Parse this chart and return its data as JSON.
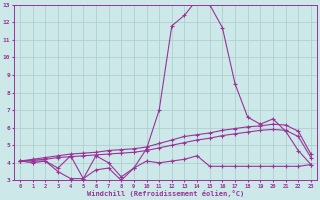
{
  "xlabel": "Windchill (Refroidissement éolien,°C)",
  "bg_color": "#cce8e8",
  "line_color": "#993399",
  "grid_color": "#aacccc",
  "x_values": [
    0,
    1,
    2,
    3,
    4,
    5,
    6,
    7,
    8,
    9,
    10,
    11,
    12,
    13,
    14,
    15,
    16,
    17,
    18,
    19,
    20,
    21,
    22,
    23
  ],
  "series1": [
    4.1,
    4.0,
    4.1,
    3.7,
    4.4,
    3.1,
    4.4,
    4.0,
    3.2,
    3.7,
    4.8,
    7.0,
    11.8,
    12.4,
    13.3,
    13.0,
    11.7,
    8.5,
    6.6,
    6.2,
    6.5,
    5.8,
    4.7,
    3.9
  ],
  "series2": [
    4.1,
    4.1,
    4.1,
    3.5,
    3.1,
    3.1,
    3.6,
    3.7,
    3.0,
    3.7,
    4.1,
    4.0,
    4.1,
    4.2,
    4.4,
    3.8,
    3.8,
    3.8,
    3.8,
    3.8,
    3.8,
    3.8,
    3.8,
    3.9
  ],
  "series3": [
    4.1,
    4.2,
    4.3,
    4.4,
    4.5,
    4.55,
    4.6,
    4.7,
    4.75,
    4.8,
    4.9,
    5.1,
    5.3,
    5.5,
    5.6,
    5.7,
    5.85,
    5.95,
    6.05,
    6.1,
    6.2,
    6.15,
    5.8,
    4.5
  ],
  "series4": [
    4.1,
    4.15,
    4.2,
    4.3,
    4.35,
    4.4,
    4.45,
    4.5,
    4.55,
    4.6,
    4.7,
    4.85,
    5.0,
    5.15,
    5.3,
    5.4,
    5.55,
    5.65,
    5.75,
    5.85,
    5.9,
    5.85,
    5.5,
    4.3
  ],
  "ylim": [
    3,
    13
  ],
  "xlim": [
    -0.5,
    23.5
  ],
  "yticks": [
    3,
    4,
    5,
    6,
    7,
    8,
    9,
    10,
    11,
    12,
    13
  ]
}
